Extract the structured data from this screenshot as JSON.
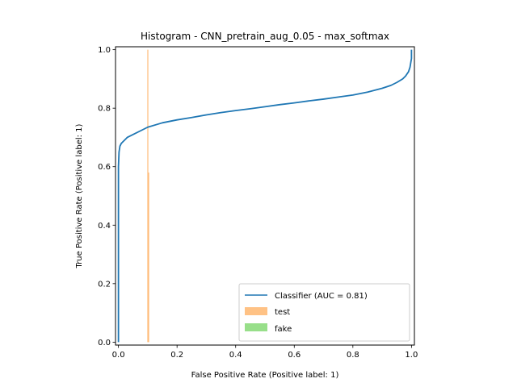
{
  "chart_data": {
    "type": "line",
    "title": "Histogram - CNN_pretrain_aug_0.05 - max_softmax",
    "xlabel": "False Positive Rate (Positive label: 1)",
    "ylabel": "True Positive Rate (Positive label: 1)",
    "xlim": [
      -0.01,
      1.01
    ],
    "ylim": [
      -0.01,
      1.01
    ],
    "xticks": [
      "0.0",
      "0.2",
      "0.4",
      "0.6",
      "0.8",
      "1.0"
    ],
    "yticks": [
      "0.0",
      "0.2",
      "0.4",
      "0.6",
      "0.8",
      "1.0"
    ],
    "grid": false,
    "legend_position": "lower-right",
    "series": [
      {
        "name": "Classifier (AUC = 0.81)",
        "kind": "line",
        "color": "#1f77b4",
        "x": [
          0.0,
          0.0,
          0.002,
          0.005,
          0.01,
          0.02,
          0.03,
          0.05,
          0.08,
          0.1,
          0.15,
          0.2,
          0.25,
          0.3,
          0.35,
          0.4,
          0.45,
          0.5,
          0.55,
          0.6,
          0.65,
          0.7,
          0.75,
          0.8,
          0.85,
          0.9,
          0.93,
          0.95,
          0.97,
          0.98,
          0.99,
          0.995,
          1.0,
          1.0
        ],
        "y": [
          0.0,
          0.6,
          0.65,
          0.67,
          0.68,
          0.69,
          0.7,
          0.71,
          0.725,
          0.735,
          0.75,
          0.76,
          0.768,
          0.777,
          0.785,
          0.792,
          0.798,
          0.805,
          0.812,
          0.818,
          0.825,
          0.831,
          0.838,
          0.845,
          0.855,
          0.868,
          0.878,
          0.888,
          0.9,
          0.91,
          0.925,
          0.94,
          0.97,
          1.0
        ]
      },
      {
        "name": "test",
        "kind": "histogram",
        "color": "#ffbb78",
        "x": [
          0.1,
          0.1
        ],
        "y": [
          1.0,
          0.58
        ]
      },
      {
        "name": "fake",
        "kind": "histogram",
        "color": "#98df8a",
        "x": [],
        "y": []
      }
    ]
  }
}
